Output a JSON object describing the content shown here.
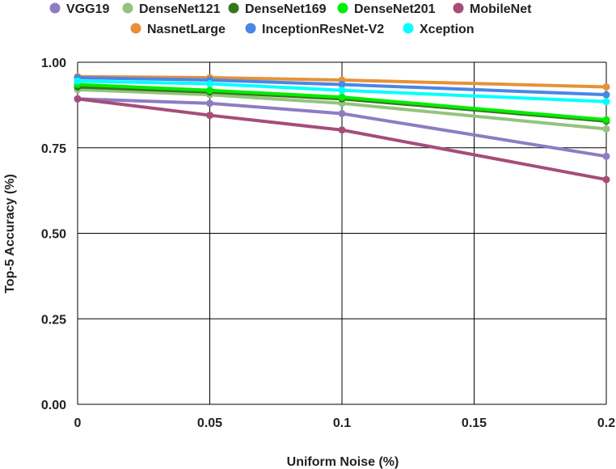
{
  "chart_data": {
    "type": "line",
    "title": "",
    "xlabel": "Uniform Noise (%)",
    "ylabel": "Top-5 Accuracy  (%)",
    "x": [
      0,
      0.05,
      0.1,
      0.15,
      0.2
    ],
    "x_tick_labels": [
      "0",
      "0.05",
      "0.1",
      "0.15",
      "0.2"
    ],
    "y_tick_values": [
      0,
      0.25,
      0.5,
      0.75,
      1.0
    ],
    "y_tick_labels": [
      "0.00",
      "0.25",
      "0.50",
      "0.75",
      "1.00"
    ],
    "xlim": [
      0,
      0.2
    ],
    "ylim": [
      0,
      1.0
    ],
    "grid": true,
    "legend_position": "top",
    "series": [
      {
        "name": "VGG19",
        "color": "#8e7cc3",
        "values": [
          0.893,
          0.88,
          0.85,
          null,
          0.725
        ]
      },
      {
        "name": "DenseNet121",
        "color": "#93c47d",
        "values": [
          0.92,
          0.905,
          0.88,
          null,
          0.805
        ]
      },
      {
        "name": "DenseNet169",
        "color": "#38761d",
        "values": [
          0.928,
          0.913,
          0.893,
          null,
          0.828
        ]
      },
      {
        "name": "DenseNet201",
        "color": "#00ee00",
        "values": [
          0.935,
          0.918,
          0.898,
          null,
          0.832
        ]
      },
      {
        "name": "MobileNet",
        "color": "#a64d79",
        "values": [
          0.893,
          0.845,
          0.802,
          null,
          0.657
        ]
      },
      {
        "name": "NasnetLarge",
        "color": "#e69138",
        "values": [
          0.958,
          0.955,
          0.948,
          null,
          0.928
        ]
      },
      {
        "name": "InceptionResNet-V2",
        "color": "#4a86e8",
        "values": [
          0.955,
          0.948,
          0.935,
          null,
          0.905
        ]
      },
      {
        "name": "Xception",
        "color": "#00ffff",
        "values": [
          0.945,
          0.937,
          0.918,
          null,
          0.885
        ]
      }
    ]
  }
}
